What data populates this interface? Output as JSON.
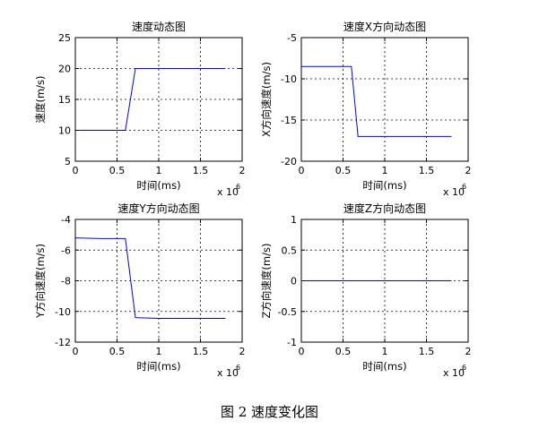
{
  "figure_caption": "图 2  速度变化图",
  "chart_data": [
    {
      "type": "line",
      "title": "速度动态图",
      "xlabel": "时间(ms)",
      "ylabel": "速度(m/s)",
      "x_multiplier_label": "x 10",
      "x_multiplier_exp": "6",
      "xlim": [
        0,
        2
      ],
      "ylim": [
        5,
        25
      ],
      "xticks": [
        "0",
        "0.5",
        "1",
        "1.5",
        "2"
      ],
      "yticks": [
        "5",
        "10",
        "15",
        "20",
        "25"
      ],
      "xtick_values": [
        0,
        0.5,
        1,
        1.5,
        2
      ],
      "ytick_values": [
        5,
        10,
        15,
        20,
        25
      ],
      "grid": true,
      "series_color": "#0000ff",
      "series": [
        {
          "x": [
            0,
            0.6,
            0.72,
            1.8
          ],
          "y": [
            10,
            10,
            20,
            20
          ]
        }
      ]
    },
    {
      "type": "line",
      "title": "速度X方向动态图",
      "xlabel": "时间(ms)",
      "ylabel": "X方向速度(m/s)",
      "x_multiplier_label": "x 10",
      "x_multiplier_exp": "6",
      "xlim": [
        0,
        2
      ],
      "ylim": [
        -20,
        -5
      ],
      "xticks": [
        "0",
        "0.5",
        "1",
        "1.5",
        "2"
      ],
      "yticks": [
        "-20",
        "-15",
        "-10",
        "-5"
      ],
      "xtick_values": [
        0,
        0.5,
        1,
        1.5,
        2
      ],
      "ytick_values": [
        -20,
        -15,
        -10,
        -5
      ],
      "grid": true,
      "series_color": "#0000ff",
      "series": [
        {
          "x": [
            0,
            0.6,
            0.68,
            1.8
          ],
          "y": [
            -8.5,
            -8.5,
            -17,
            -17
          ]
        }
      ]
    },
    {
      "type": "line",
      "title": "速度Y方向动态图",
      "xlabel": "时间(ms)",
      "ylabel": "Y方向速度(m/s)",
      "x_multiplier_label": "x 10",
      "x_multiplier_exp": "6",
      "xlim": [
        0,
        2
      ],
      "ylim": [
        -12,
        -4
      ],
      "xticks": [
        "0",
        "0.5",
        "1",
        "1.5",
        "2"
      ],
      "yticks": [
        "-12",
        "-10",
        "-8",
        "-6",
        "-4"
      ],
      "xtick_values": [
        0,
        0.5,
        1,
        1.5,
        2
      ],
      "ytick_values": [
        -12,
        -10,
        -8,
        -6,
        -4
      ],
      "grid": true,
      "series_color": "#0000ff",
      "series": [
        {
          "x": [
            0,
            0.3,
            0.6,
            0.72,
            1.0,
            1.8
          ],
          "y": [
            -5.2,
            -5.25,
            -5.25,
            -10.4,
            -10.45,
            -10.45
          ]
        }
      ]
    },
    {
      "type": "line",
      "title": "速度Z方向动态图",
      "xlabel": "时间(ms)",
      "ylabel": "Z方向速度(m/s)",
      "x_multiplier_label": "x 10",
      "x_multiplier_exp": "6",
      "xlim": [
        0,
        2
      ],
      "ylim": [
        -1,
        1
      ],
      "xticks": [
        "0",
        "0.5",
        "1",
        "1.5",
        "2"
      ],
      "yticks": [
        "-1",
        "-0.5",
        "0",
        "0.5",
        "1"
      ],
      "xtick_values": [
        0,
        0.5,
        1,
        1.5,
        2
      ],
      "ytick_values": [
        -1,
        -0.5,
        0,
        0.5,
        1
      ],
      "grid": true,
      "series_color": "#0000ff",
      "series": [
        {
          "x": [
            0,
            1.8
          ],
          "y": [
            0,
            0
          ]
        }
      ]
    }
  ]
}
